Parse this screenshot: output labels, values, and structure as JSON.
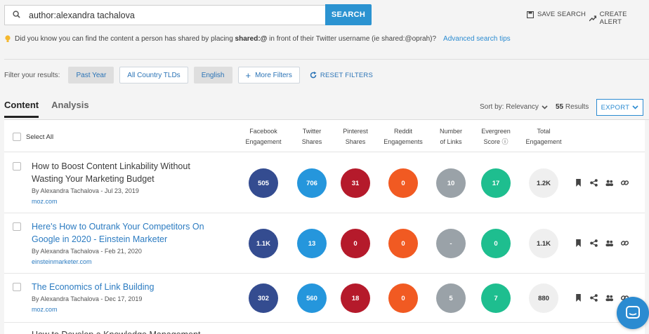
{
  "search": {
    "query": "author:alexandra tachalova",
    "button_label": "SEARCH",
    "save_search": "SAVE SEARCH",
    "create_alert": "CREATE ALERT"
  },
  "tip": {
    "text_before": "Did you know you can find the content a person has shared by placing ",
    "bold": "shared:@",
    "text_after": " in front of their Twitter username (ie shared:@oprah)?",
    "link": "Advanced search tips"
  },
  "filters": {
    "label": "Filter your results:",
    "items": [
      "Past Year",
      "All Country TLDs",
      "English"
    ],
    "more": "More Filters",
    "reset": "RESET FILTERS"
  },
  "tabs": [
    "Content",
    "Analysis"
  ],
  "sort": {
    "label": "Sort by: Relevancy",
    "count": "55",
    "results_word": "Results",
    "export": "EXPORT"
  },
  "table": {
    "select_all": "Select All",
    "columns": [
      [
        "Facebook",
        "Engagement"
      ],
      [
        "Twitter",
        "Shares"
      ],
      [
        "Pinterest",
        "Shares"
      ],
      [
        "Reddit",
        "Engagements"
      ],
      [
        "Number",
        "of Links"
      ],
      [
        "Evergreen",
        "Score ⓘ"
      ],
      [
        "Total",
        "Engagement"
      ]
    ],
    "rows": [
      {
        "title": "How to Boost Content Linkability Without Wasting Your Marketing Budget",
        "meta": "By Alexandra Tachalova - Jul 23, 2019",
        "domain": "moz.com",
        "values": [
          "505",
          "706",
          "31",
          "0",
          "10",
          "17",
          "1.2K"
        ]
      },
      {
        "title": "Here's How to Outrank Your Competitors On Google in 2020 - Einstein Marketer",
        "meta": "By Alexandra Tachalova - Feb 21, 2020",
        "domain": "einsteinmarketer.com",
        "values": [
          "1.1K",
          "13",
          "0",
          "0",
          "-",
          "0",
          "1.1K"
        ]
      },
      {
        "title": "The Economics of Link Building",
        "meta": "By Alexandra Tachalova - Dec 17, 2019",
        "domain": "moz.com",
        "values": [
          "302",
          "560",
          "18",
          "0",
          "5",
          "7",
          "880"
        ]
      },
      {
        "title": "How to Develop a Knowledge Management"
      }
    ]
  },
  "colors": {
    "facebook": "#344c90",
    "twitter": "#2596dc",
    "pinterest": "#b51a2b",
    "reddit": "#f15a22",
    "links": "#9aa2a8",
    "evergreen": "#1ebe8f",
    "accent": "#2b93d1"
  }
}
